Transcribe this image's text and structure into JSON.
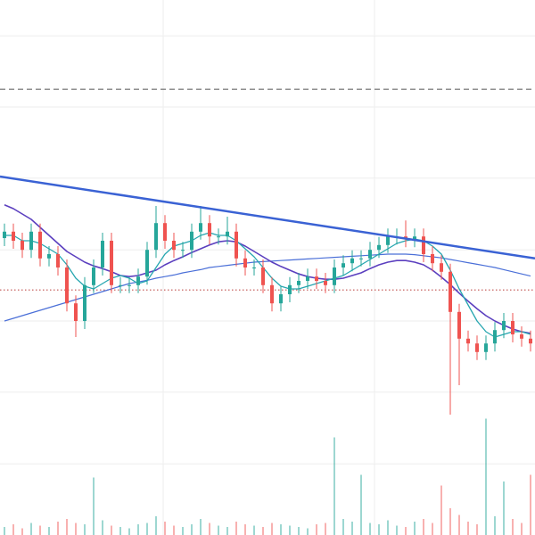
{
  "chart_data": {
    "type": "candlestick",
    "xlim": [
      -0.5,
      59.5
    ],
    "ylim": [
      0,
      100
    ],
    "xticks": [
      17.8,
      41.5
    ],
    "yticks": [
      13.3,
      26.7,
      40,
      53.3,
      66.7,
      80,
      93.3
    ],
    "grid": true,
    "up_color": "#26a69a",
    "down_color": "#ef5350",
    "open": [
      55.5,
      56.7,
      55,
      53.3,
      56.7,
      51.7,
      52.5,
      50,
      43.3,
      40,
      46.7,
      50,
      55,
      46.7,
      46.7,
      46.7,
      48.3,
      53.3,
      58.3,
      55,
      53.3,
      53.3,
      56.7,
      58.3,
      55.8,
      55.8,
      56.7,
      51.7,
      50,
      50,
      46.7,
      43.3,
      45,
      46.7,
      47.5,
      48.3,
      47.5,
      46.7,
      50,
      50.8,
      51.7,
      51.7,
      53.3,
      54.2,
      55.8,
      55.8,
      55.3,
      55.8,
      52.5,
      50.8,
      49.2,
      41.7,
      36.7,
      35.8,
      34.2,
      35.8,
      38.3,
      40,
      37.5,
      36.7
    ],
    "high": [
      58.2,
      58.2,
      56.5,
      58.2,
      58.2,
      54,
      54,
      51.5,
      44.8,
      48.2,
      51.5,
      56.5,
      56.5,
      48.2,
      48.2,
      49.8,
      54.8,
      61.5,
      59.8,
      56.5,
      54.8,
      58.2,
      61.5,
      59.8,
      57.3,
      59.5,
      58.2,
      53.2,
      51.5,
      51.5,
      48.2,
      46.5,
      48.2,
      49,
      49.8,
      49.8,
      49,
      51.5,
      52.3,
      53.2,
      53.2,
      54.8,
      55.7,
      57.3,
      57.3,
      58.8,
      57.3,
      57.3,
      54,
      52.3,
      50.7,
      43.2,
      38.2,
      37.3,
      37.3,
      39.8,
      41.5,
      41.5,
      39,
      38.2
    ],
    "low": [
      54,
      53.5,
      51.8,
      51.8,
      50.2,
      50.2,
      48.5,
      41.8,
      37,
      38.5,
      45.2,
      48.5,
      45.2,
      45.2,
      45.2,
      45.2,
      46.8,
      51.8,
      53.5,
      51.8,
      51.8,
      51.8,
      55.2,
      54.3,
      54.3,
      54.3,
      50.2,
      48.5,
      48.5,
      45.2,
      41.8,
      41.8,
      43.5,
      45.2,
      46,
      46,
      45.2,
      45.2,
      48.5,
      49.3,
      50.2,
      50.2,
      51.8,
      52.7,
      54.3,
      53.8,
      53.8,
      51,
      49.3,
      47.7,
      22.5,
      28,
      34.3,
      32.7,
      32.7,
      34.3,
      36.8,
      36,
      35.2,
      34.3
    ],
    "close": [
      56.7,
      55,
      53.3,
      56.7,
      51.7,
      52.5,
      50,
      43.3,
      40,
      46.7,
      50,
      55,
      46.7,
      46.7,
      46.7,
      48.3,
      53.3,
      58.3,
      55,
      53.3,
      53.3,
      56.7,
      58.3,
      55.8,
      55.8,
      56.7,
      51.7,
      50,
      50,
      46.7,
      43.3,
      45,
      46.7,
      47.5,
      48.3,
      47.5,
      46.7,
      50,
      50.8,
      51.7,
      51.7,
      53.3,
      54.2,
      55.8,
      55.8,
      55.3,
      55.8,
      52.5,
      50.8,
      49.2,
      41.7,
      36.7,
      35.8,
      34.2,
      35.8,
      38.3,
      40,
      37.5,
      36.7,
      35.8
    ],
    "volume": [
      6,
      8,
      5,
      9,
      7,
      6,
      10,
      12,
      9,
      8,
      43,
      11,
      7,
      6,
      5,
      8,
      9,
      14,
      10,
      7,
      6,
      8,
      12,
      9,
      7,
      6,
      10,
      8,
      7,
      6,
      9,
      8,
      7,
      6,
      5,
      8,
      9,
      73,
      12,
      10,
      45,
      9,
      8,
      11,
      7,
      6,
      10,
      12,
      9,
      37,
      20,
      15,
      10,
      8,
      87,
      14,
      40,
      12,
      9,
      45
    ],
    "vlim": [
      0,
      100
    ],
    "series": [
      {
        "color": "#26a6b0",
        "values": [
          56,
          56,
          55,
          55,
          54.5,
          53.5,
          52.5,
          50.5,
          48,
          46.5,
          46,
          47,
          48,
          48.5,
          48,
          47,
          47.5,
          50,
          52.5,
          54,
          54.5,
          55,
          56,
          56.5,
          56,
          56,
          55,
          53.5,
          52,
          50,
          48,
          46.5,
          46,
          46,
          46.5,
          47,
          47.5,
          48,
          48.5,
          49.5,
          50.5,
          51.5,
          52.5,
          53.5,
          54.5,
          55,
          55.3,
          55,
          54,
          52.5,
          49.5,
          46,
          43,
          40,
          38,
          37,
          37.5,
          38,
          38,
          37.5
        ]
      },
      {
        "color": "#5b3fbf",
        "values": [
          61.7,
          61,
          60,
          59,
          57.5,
          56,
          54.5,
          53,
          52,
          51,
          50.3,
          49.8,
          49.2,
          48.5,
          48.3,
          48.5,
          49,
          49.5,
          50.5,
          51.3,
          52,
          52.8,
          53.5,
          54.2,
          54.8,
          55,
          54.8,
          54,
          53,
          52,
          51,
          50.2,
          49.5,
          48.8,
          48.3,
          48,
          47.8,
          47.8,
          48,
          48.5,
          49,
          49.8,
          50.5,
          51,
          51.3,
          51.3,
          51,
          50.5,
          49.5,
          48.2,
          46.8,
          45.2,
          43.7,
          42.3,
          41,
          40,
          39.2,
          38.5,
          38,
          37.7
        ]
      },
      {
        "color": "#4a6fd8",
        "values": [
          40,
          40.5,
          41,
          41.5,
          42,
          42.5,
          43,
          43.5,
          44,
          44.5,
          45,
          45.5,
          46,
          46.5,
          47,
          47.3,
          47.6,
          48,
          48.3,
          48.6,
          49,
          49.3,
          49.6,
          50,
          50.2,
          50.4,
          50.6,
          50.8,
          51,
          51.1,
          51.2,
          51.3,
          51.4,
          51.5,
          51.6,
          51.7,
          51.8,
          51.9,
          52,
          52.1,
          52.2,
          52.3,
          52.4,
          52.5,
          52.5,
          52.5,
          52.4,
          52.2,
          52,
          51.8,
          51.5,
          51.2,
          50.9,
          50.6,
          50.3,
          50,
          49.6,
          49.2,
          48.8,
          48.4
        ]
      }
    ],
    "trendline": {
      "color": "#3a62d4",
      "x": [
        -0.5,
        59.5
      ],
      "y": [
        67,
        51.7
      ]
    },
    "hlines": [
      {
        "value": 83.3,
        "color": "#808080",
        "style": "dashed"
      },
      {
        "value": 45.8,
        "color": "#c0504d",
        "style": "dotted"
      }
    ]
  }
}
